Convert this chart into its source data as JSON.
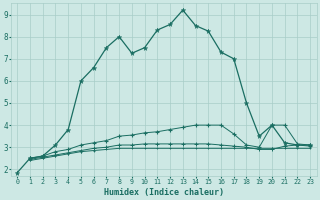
{
  "title": "",
  "xlabel": "Humidex (Indice chaleur)",
  "bg_color": "#cde8e4",
  "grid_color": "#a8cdc8",
  "line_color": "#1a6e62",
  "xlim": [
    -0.5,
    23.5
  ],
  "ylim": [
    1.7,
    9.5
  ],
  "xticks": [
    0,
    1,
    2,
    3,
    4,
    5,
    6,
    7,
    8,
    9,
    10,
    11,
    12,
    13,
    14,
    15,
    16,
    17,
    18,
    19,
    20,
    21,
    22,
    23
  ],
  "yticks": [
    2,
    3,
    4,
    5,
    6,
    7,
    8,
    9
  ],
  "line1_x": [
    0,
    1,
    2,
    3,
    4,
    5,
    6,
    7,
    8,
    9,
    10,
    11,
    12,
    13,
    14,
    15,
    16,
    17,
    18,
    19,
    20,
    21,
    22,
    23
  ],
  "line1_y": [
    1.85,
    2.5,
    2.6,
    3.1,
    3.8,
    6.0,
    6.6,
    7.5,
    8.0,
    7.25,
    7.5,
    8.3,
    8.55,
    9.2,
    8.5,
    8.25,
    7.3,
    7.0,
    5.0,
    3.5,
    4.0,
    3.2,
    3.1,
    3.1
  ],
  "line2_x": [
    1,
    2,
    3,
    4,
    5,
    6,
    7,
    8,
    9,
    10,
    11,
    12,
    13,
    14,
    15,
    16,
    17,
    18,
    19,
    20,
    21,
    22,
    23
  ],
  "line2_y": [
    2.5,
    2.6,
    2.8,
    2.9,
    3.1,
    3.2,
    3.3,
    3.5,
    3.55,
    3.65,
    3.7,
    3.8,
    3.9,
    4.0,
    4.0,
    4.0,
    3.6,
    3.1,
    3.0,
    4.0,
    4.0,
    3.15,
    3.1
  ],
  "line3_x": [
    1,
    2,
    3,
    4,
    5,
    6,
    7,
    8,
    9,
    10,
    11,
    12,
    13,
    14,
    15,
    16,
    17,
    18,
    19,
    20,
    21,
    22,
    23
  ],
  "line3_y": [
    2.45,
    2.55,
    2.65,
    2.75,
    2.85,
    2.95,
    3.0,
    3.1,
    3.1,
    3.15,
    3.15,
    3.15,
    3.15,
    3.15,
    3.15,
    3.1,
    3.05,
    3.0,
    2.9,
    2.9,
    3.05,
    3.1,
    3.05
  ],
  "line4_x": [
    1,
    2,
    3,
    4,
    5,
    6,
    7,
    8,
    9,
    10,
    11,
    12,
    13,
    14,
    15,
    16,
    17,
    18,
    19,
    20,
    21,
    22,
    23
  ],
  "line4_y": [
    2.4,
    2.5,
    2.6,
    2.7,
    2.8,
    2.85,
    2.9,
    2.95,
    2.95,
    2.95,
    2.95,
    2.95,
    2.95,
    2.95,
    2.95,
    2.95,
    2.95,
    2.95,
    2.95,
    2.95,
    2.95,
    2.95,
    2.95
  ]
}
